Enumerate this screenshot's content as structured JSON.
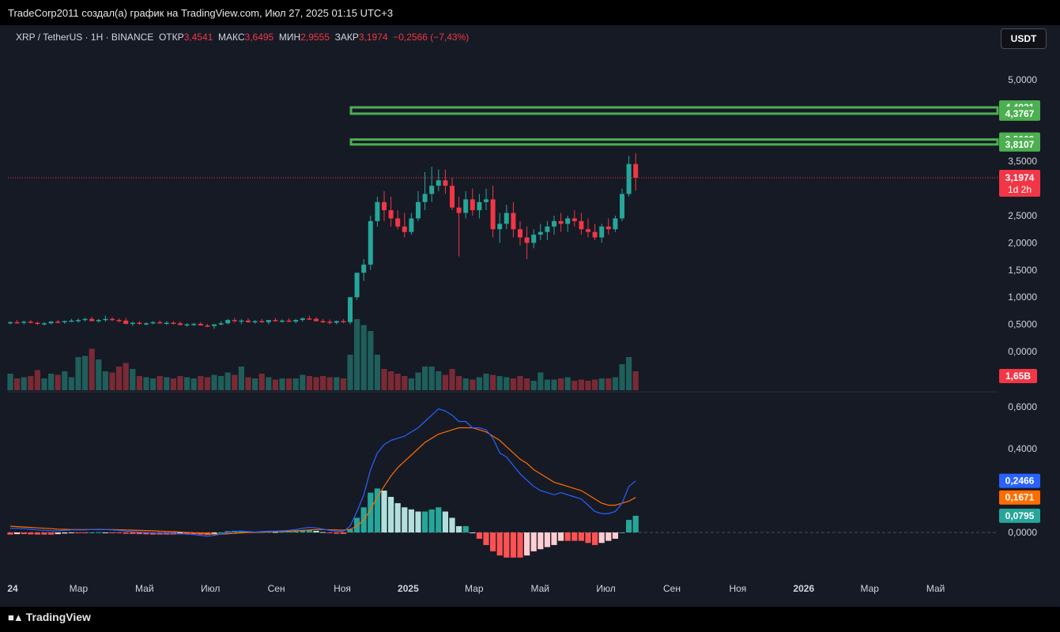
{
  "header": {
    "caption": "TradeCorp2011 создал(а) график на TradingView.com, Июл 27, 2025 01:15 UTC+3"
  },
  "symbol_bar": {
    "symbol": "XRP / TetherUS · 1H · BINANCE",
    "open_label": "ОТКР",
    "open_value": "3,4541",
    "high_label": "МАКС",
    "high_value": "3,6495",
    "low_label": "МИН",
    "low_value": "2,9555",
    "close_label": "ЗАКР",
    "close_value": "3,1974",
    "change": "−0,2566 (−7,43%)"
  },
  "currency_button": "USDT",
  "footer": {
    "brand": "TradingView"
  },
  "colors": {
    "bg": "#161a25",
    "up": "#26a69a",
    "down": "#f23645",
    "macd": "#2962ff",
    "signal": "#ff6d00",
    "zone": "#4caf50",
    "hist_up_strong": "#26a69a",
    "hist_up_weak": "#b2dfdb",
    "hist_down_strong": "#ff5252",
    "hist_down_weak": "#ffcdd2"
  },
  "chart_data": {
    "type": "candlestick",
    "price_axis_ticks": [
      "5,0000",
      "3,5000",
      "2,5000",
      "2,0000",
      "1,5000",
      "1,0000",
      "0,5000",
      "0,0000"
    ],
    "price_axis_ticks_values": [
      5.0,
      3.5,
      2.5,
      2.0,
      1.5,
      1.0,
      0.5,
      0.0
    ],
    "time_axis_labels": [
      {
        "label": "24",
        "bold": true,
        "t": 0
      },
      {
        "label": "Мар",
        "t": 2
      },
      {
        "label": "Май",
        "t": 4
      },
      {
        "label": "Июл",
        "t": 6
      },
      {
        "label": "Сен",
        "t": 8
      },
      {
        "label": "Ноя",
        "t": 10
      },
      {
        "label": "2025",
        "bold": true,
        "t": 12
      },
      {
        "label": "Мар",
        "t": 14
      },
      {
        "label": "Май",
        "t": 16
      },
      {
        "label": "Июл",
        "t": 18
      },
      {
        "label": "Сен",
        "t": 20
      },
      {
        "label": "Ноя",
        "t": 22
      },
      {
        "label": "2026",
        "bold": true,
        "t": 24
      },
      {
        "label": "Мар",
        "t": 26
      },
      {
        "label": "Май",
        "t": 28
      }
    ],
    "zones": [
      {
        "top": 4.4921,
        "bottom": 4.3767,
        "label_top": "4,4921",
        "label_bottom": "4,3767"
      },
      {
        "top": 3.9009,
        "bottom": 3.8107,
        "label_top": "3,9009",
        "label_bottom": "3,8107"
      }
    ],
    "last_price": {
      "value": 3.1974,
      "label": "3,1974",
      "countdown": "1d 2h"
    },
    "volume_label": "1,65B",
    "macd_axis_ticks": [
      "0,6000",
      "0,4000",
      "0,0000"
    ],
    "macd_axis_ticks_values": [
      0.6,
      0.4,
      0.0
    ],
    "macd_labels": [
      {
        "value": 0.2466,
        "label": "0,2466",
        "color": "#2962ff"
      },
      {
        "value": 0.1671,
        "label": "0,1671",
        "color": "#ff6d00"
      },
      {
        "value": 0.0795,
        "label": "0,0795",
        "color": "#26a69a"
      }
    ],
    "candles": [
      [
        0.52,
        0.56,
        0.5,
        0.54,
        1.4
      ],
      [
        0.54,
        0.58,
        0.52,
        0.53,
        1.0
      ],
      [
        0.53,
        0.57,
        0.5,
        0.55,
        1.1
      ],
      [
        0.55,
        0.58,
        0.52,
        0.53,
        1.2
      ],
      [
        0.53,
        0.55,
        0.49,
        0.51,
        1.7
      ],
      [
        0.51,
        0.54,
        0.48,
        0.52,
        1.0
      ],
      [
        0.52,
        0.56,
        0.5,
        0.55,
        1.4
      ],
      [
        0.55,
        0.58,
        0.52,
        0.54,
        1.3
      ],
      [
        0.54,
        0.57,
        0.51,
        0.56,
        1.6
      ],
      [
        0.56,
        0.6,
        0.54,
        0.57,
        1.1
      ],
      [
        0.57,
        0.61,
        0.53,
        0.58,
        2.8
      ],
      [
        0.58,
        0.62,
        0.55,
        0.6,
        2.9
      ],
      [
        0.6,
        0.64,
        0.56,
        0.56,
        3.5
      ],
      [
        0.56,
        0.6,
        0.53,
        0.58,
        2.6
      ],
      [
        0.58,
        0.66,
        0.55,
        0.6,
        1.6
      ],
      [
        0.6,
        0.63,
        0.56,
        0.58,
        1.5
      ],
      [
        0.58,
        0.61,
        0.54,
        0.57,
        2.0
      ],
      [
        0.57,
        0.62,
        0.5,
        0.51,
        2.3
      ],
      [
        0.51,
        0.55,
        0.47,
        0.53,
        1.8
      ],
      [
        0.53,
        0.56,
        0.49,
        0.51,
        1.2
      ],
      [
        0.51,
        0.54,
        0.48,
        0.52,
        1.1
      ],
      [
        0.52,
        0.56,
        0.5,
        0.54,
        1.0
      ],
      [
        0.54,
        0.57,
        0.51,
        0.52,
        1.2
      ],
      [
        0.52,
        0.56,
        0.49,
        0.53,
        1.1
      ],
      [
        0.53,
        0.56,
        0.5,
        0.52,
        1.0
      ],
      [
        0.52,
        0.55,
        0.48,
        0.49,
        1.2
      ],
      [
        0.49,
        0.52,
        0.46,
        0.5,
        1.1
      ],
      [
        0.5,
        0.53,
        0.47,
        0.51,
        1.0
      ],
      [
        0.51,
        0.54,
        0.48,
        0.48,
        1.2
      ],
      [
        0.48,
        0.51,
        0.45,
        0.47,
        1.1
      ],
      [
        0.47,
        0.5,
        0.42,
        0.5,
        1.3
      ],
      [
        0.5,
        0.56,
        0.48,
        0.52,
        1.2
      ],
      [
        0.52,
        0.6,
        0.5,
        0.58,
        1.5
      ],
      [
        0.58,
        0.62,
        0.53,
        0.56,
        1.3
      ],
      [
        0.56,
        0.6,
        0.5,
        0.57,
        2.0
      ],
      [
        0.57,
        0.61,
        0.53,
        0.54,
        1.1
      ],
      [
        0.54,
        0.58,
        0.51,
        0.56,
        1.0
      ],
      [
        0.56,
        0.6,
        0.53,
        0.54,
        1.4
      ],
      [
        0.54,
        0.57,
        0.5,
        0.58,
        1.1
      ],
      [
        0.58,
        0.62,
        0.55,
        0.56,
        0.9
      ],
      [
        0.56,
        0.59,
        0.53,
        0.57,
        1.0
      ],
      [
        0.57,
        0.61,
        0.54,
        0.55,
        1.0
      ],
      [
        0.55,
        0.6,
        0.52,
        0.58,
        1.0
      ],
      [
        0.58,
        0.63,
        0.55,
        0.61,
        1.3
      ],
      [
        0.61,
        0.66,
        0.58,
        0.6,
        1.2
      ],
      [
        0.6,
        0.63,
        0.55,
        0.56,
        1.1
      ],
      [
        0.56,
        0.6,
        0.52,
        0.55,
        1.2
      ],
      [
        0.55,
        0.59,
        0.5,
        0.53,
        1.1
      ],
      [
        0.53,
        0.57,
        0.5,
        0.56,
        1.1
      ],
      [
        0.56,
        0.6,
        0.52,
        0.54,
        1.0
      ],
      [
        0.54,
        1.0,
        0.5,
        1.0,
        3.0
      ],
      [
        1.0,
        1.45,
        0.95,
        1.45,
        6.0
      ],
      [
        1.45,
        1.7,
        1.3,
        1.6,
        5.5
      ],
      [
        1.6,
        2.5,
        1.5,
        2.4,
        5.0
      ],
      [
        2.4,
        2.85,
        2.3,
        2.75,
        3.0
      ],
      [
        2.75,
        2.95,
        2.4,
        2.6,
        1.8
      ],
      [
        2.6,
        2.85,
        2.3,
        2.45,
        1.6
      ],
      [
        2.45,
        2.6,
        2.25,
        2.3,
        1.4
      ],
      [
        2.3,
        2.55,
        2.1,
        2.2,
        1.2
      ],
      [
        2.2,
        2.55,
        2.15,
        2.45,
        1.0
      ],
      [
        2.45,
        2.95,
        2.4,
        2.75,
        1.5
      ],
      [
        2.75,
        3.3,
        2.6,
        2.9,
        2.0
      ],
      [
        2.9,
        3.4,
        2.75,
        3.05,
        2.0
      ],
      [
        3.05,
        3.35,
        2.95,
        3.15,
        1.6
      ],
      [
        3.15,
        3.35,
        2.9,
        3.05,
        1.3
      ],
      [
        3.05,
        3.2,
        2.6,
        2.65,
        1.8
      ],
      [
        2.65,
        2.85,
        1.75,
        2.55,
        1.2
      ],
      [
        2.55,
        2.95,
        2.45,
        2.8,
        1.0
      ],
      [
        2.8,
        3.0,
        2.5,
        2.6,
        0.9
      ],
      [
        2.6,
        2.9,
        2.45,
        2.75,
        1.1
      ],
      [
        2.75,
        3.0,
        2.6,
        2.8,
        1.4
      ],
      [
        2.8,
        3.05,
        2.1,
        2.25,
        1.3
      ],
      [
        2.25,
        2.55,
        2.0,
        2.35,
        1.2
      ],
      [
        2.35,
        2.7,
        2.25,
        2.55,
        1.1
      ],
      [
        2.55,
        2.75,
        2.1,
        2.25,
        1.0
      ],
      [
        2.25,
        2.4,
        1.95,
        2.1,
        1.2
      ],
      [
        2.1,
        2.3,
        1.7,
        2.0,
        1.0
      ],
      [
        2.0,
        2.25,
        1.9,
        2.15,
        0.8
      ],
      [
        2.15,
        2.35,
        2.05,
        2.2,
        1.5
      ],
      [
        2.2,
        2.4,
        2.05,
        2.3,
        0.9
      ],
      [
        2.3,
        2.5,
        2.15,
        2.4,
        0.9
      ],
      [
        2.4,
        2.55,
        2.2,
        2.35,
        1.0
      ],
      [
        2.35,
        2.5,
        2.2,
        2.45,
        1.1
      ],
      [
        2.45,
        2.6,
        2.3,
        2.4,
        0.8
      ],
      [
        2.4,
        2.55,
        2.15,
        2.25,
        0.9
      ],
      [
        2.25,
        2.45,
        2.1,
        2.2,
        0.8
      ],
      [
        2.2,
        2.35,
        2.05,
        2.1,
        0.9
      ],
      [
        2.1,
        2.35,
        2.0,
        2.3,
        1.0
      ],
      [
        2.3,
        2.45,
        2.15,
        2.25,
        1.0
      ],
      [
        2.25,
        2.5,
        2.2,
        2.45,
        1.1
      ],
      [
        2.45,
        3.0,
        2.4,
        2.9,
        2.2
      ],
      [
        2.9,
        3.6,
        2.85,
        3.45,
        2.8
      ],
      [
        3.45,
        3.65,
        2.96,
        3.2,
        1.6
      ]
    ],
    "macd": [
      0.02,
      0.02,
      0.018,
      0.015,
      0.012,
      0.01,
      0.008,
      0.008,
      0.01,
      0.012,
      0.012,
      0.012,
      0.014,
      0.015,
      0.014,
      0.012,
      0.01,
      0.006,
      0.004,
      0.002,
      0.0,
      -0.002,
      -0.004,
      -0.005,
      -0.006,
      -0.006,
      -0.008,
      -0.01,
      -0.014,
      -0.018,
      -0.014,
      -0.008,
      0.0,
      0.004,
      0.006,
      0.004,
      0.002,
      0.004,
      0.006,
      0.006,
      0.008,
      0.01,
      0.014,
      0.02,
      0.024,
      0.022,
      0.016,
      0.01,
      0.006,
      0.004,
      0.03,
      0.1,
      0.18,
      0.3,
      0.38,
      0.42,
      0.44,
      0.45,
      0.46,
      0.48,
      0.5,
      0.53,
      0.56,
      0.59,
      0.58,
      0.56,
      0.53,
      0.53,
      0.5,
      0.5,
      0.49,
      0.45,
      0.38,
      0.36,
      0.32,
      0.28,
      0.25,
      0.22,
      0.2,
      0.19,
      0.18,
      0.19,
      0.18,
      0.17,
      0.16,
      0.13,
      0.1,
      0.09,
      0.09,
      0.1,
      0.14,
      0.22,
      0.2466
    ],
    "signal": [
      0.03,
      0.028,
      0.026,
      0.024,
      0.022,
      0.02,
      0.018,
      0.016,
      0.015,
      0.014,
      0.014,
      0.014,
      0.014,
      0.014,
      0.014,
      0.014,
      0.013,
      0.012,
      0.011,
      0.01,
      0.009,
      0.008,
      0.006,
      0.005,
      0.004,
      0.002,
      0.0,
      -0.002,
      -0.004,
      -0.006,
      -0.008,
      -0.008,
      -0.006,
      -0.004,
      -0.002,
      0.0,
      0.0,
      0.002,
      0.003,
      0.004,
      0.005,
      0.006,
      0.008,
      0.01,
      0.012,
      0.014,
      0.014,
      0.013,
      0.012,
      0.011,
      0.015,
      0.03,
      0.06,
      0.11,
      0.17,
      0.22,
      0.27,
      0.31,
      0.34,
      0.37,
      0.4,
      0.43,
      0.45,
      0.47,
      0.48,
      0.49,
      0.5,
      0.5,
      0.5,
      0.49,
      0.48,
      0.46,
      0.44,
      0.41,
      0.38,
      0.35,
      0.33,
      0.3,
      0.28,
      0.26,
      0.24,
      0.23,
      0.22,
      0.21,
      0.2,
      0.18,
      0.16,
      0.14,
      0.13,
      0.13,
      0.14,
      0.15,
      0.1671
    ],
    "hist": [
      -0.01,
      -0.008,
      -0.008,
      -0.009,
      -0.01,
      -0.01,
      -0.01,
      -0.008,
      -0.005,
      -0.002,
      -0.002,
      -0.002,
      0.0,
      0.001,
      0.0,
      -0.002,
      -0.003,
      -0.006,
      -0.007,
      -0.008,
      -0.009,
      -0.01,
      -0.01,
      -0.01,
      -0.01,
      -0.008,
      -0.008,
      -0.008,
      -0.01,
      -0.012,
      -0.006,
      0.0,
      0.006,
      0.008,
      0.008,
      0.004,
      0.002,
      0.002,
      0.003,
      0.002,
      0.003,
      0.004,
      0.006,
      0.01,
      0.012,
      0.008,
      0.002,
      -0.003,
      -0.006,
      -0.007,
      0.015,
      0.07,
      0.12,
      0.19,
      0.21,
      0.2,
      0.17,
      0.14,
      0.12,
      0.11,
      0.1,
      0.1,
      0.11,
      0.12,
      0.1,
      0.07,
      0.03,
      0.03,
      0.0,
      -0.03,
      -0.06,
      -0.09,
      -0.11,
      -0.12,
      -0.12,
      -0.12,
      -0.11,
      -0.09,
      -0.08,
      -0.07,
      -0.06,
      -0.04,
      -0.04,
      -0.04,
      -0.04,
      -0.05,
      -0.06,
      -0.05,
      -0.04,
      -0.03,
      0.0,
      0.06,
      0.0795
    ]
  }
}
